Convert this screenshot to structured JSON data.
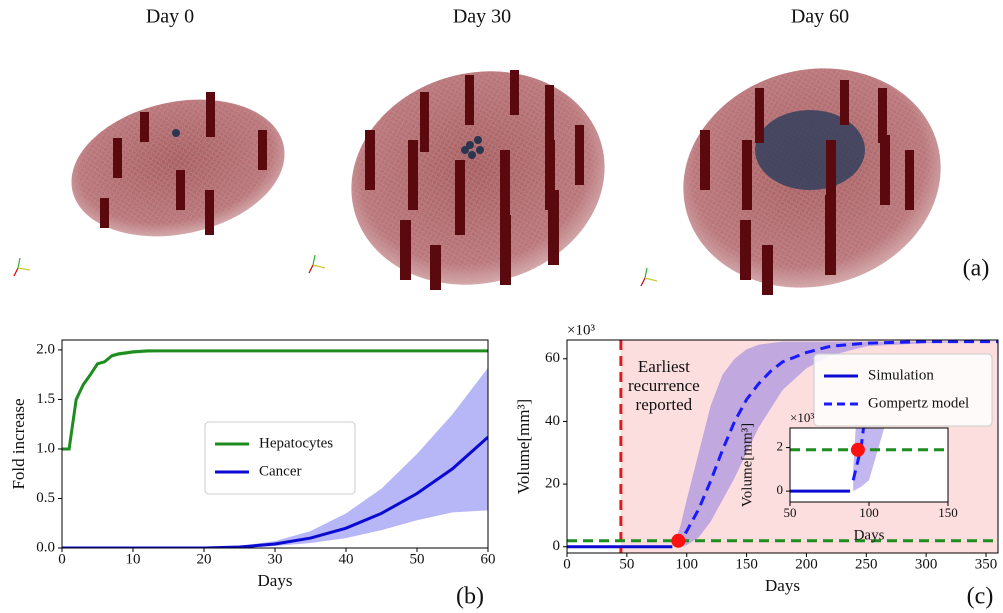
{
  "panels": [
    {
      "title": "Day 0"
    },
    {
      "title": "Day 30"
    },
    {
      "title": "Day 60"
    }
  ],
  "panel_label": "(a)",
  "chart_data": [
    {
      "type": "line",
      "label": "(b)",
      "xlabel": "Days",
      "ylabel": "Fold increase",
      "xlim": [
        0,
        60
      ],
      "xticks": [
        0,
        10,
        20,
        30,
        40,
        50,
        60
      ],
      "ylim": [
        0,
        2.1
      ],
      "yticks": [
        {
          "value": 0,
          "label": "0.0"
        },
        {
          "value": 0.5,
          "label": "0.5"
        },
        {
          "value": 1,
          "label": "1.0"
        },
        {
          "value": 1.5,
          "label": "1.5"
        },
        {
          "value": 2,
          "label": "2.0"
        }
      ],
      "legend": "center",
      "x": [
        0,
        1,
        2,
        3,
        4,
        5,
        6,
        7,
        8,
        10,
        12,
        15,
        20,
        25,
        30,
        35,
        40,
        45,
        50,
        55,
        60
      ],
      "series": [
        {
          "name": "Hepatocytes",
          "color": "#1e8c1e",
          "band_color": "#7ccf7c",
          "values": [
            1,
            1,
            1.5,
            1.65,
            1.75,
            1.86,
            1.88,
            1.94,
            1.96,
            1.98,
            1.99,
            1.99,
            1.99,
            1.99,
            1.99,
            1.99,
            1.99,
            1.99,
            1.99,
            1.99,
            1.99
          ],
          "lower": [
            1,
            1,
            1.49,
            1.64,
            1.74,
            1.85,
            1.87,
            1.92,
            1.94,
            1.96,
            1.97,
            1.98,
            1.98,
            1.98,
            1.98,
            1.98,
            1.98,
            1.98,
            1.98,
            1.98,
            1.98
          ],
          "upper": [
            1,
            1,
            1.51,
            1.66,
            1.76,
            1.87,
            1.89,
            1.96,
            1.98,
            2,
            2,
            2,
            2,
            2,
            2,
            2,
            2,
            2,
            2,
            2,
            2
          ]
        },
        {
          "name": "Cancer",
          "color": "#0a0ad2",
          "band_color": "#7b7bf0",
          "values": [
            0,
            0,
            0,
            0,
            0,
            0,
            0,
            0,
            0,
            0,
            0,
            0,
            0,
            0.01,
            0.04,
            0.1,
            0.2,
            0.35,
            0.55,
            0.8,
            1.12
          ],
          "lower": [
            0,
            0,
            0,
            0,
            0,
            0,
            0,
            0,
            0,
            0,
            0,
            0,
            0,
            0,
            0.02,
            0.05,
            0.1,
            0.18,
            0.28,
            0.36,
            0.38
          ],
          "upper": [
            0,
            0,
            0,
            0,
            0,
            0,
            0,
            0,
            0,
            0,
            0,
            0,
            0,
            0.02,
            0.07,
            0.17,
            0.35,
            0.6,
            0.95,
            1.35,
            1.82
          ]
        }
      ]
    },
    {
      "type": "line",
      "label": "(c)",
      "xlabel": "Days",
      "ylabel": "Volume[mm³]",
      "multiplier": "×10³",
      "xlim": [
        0,
        360
      ],
      "xticks": [
        0,
        50,
        100,
        150,
        200,
        250,
        300,
        350
      ],
      "ylim": [
        -2,
        66
      ],
      "yticks": [
        0,
        20,
        40,
        60
      ],
      "legend": "upper right",
      "shade": {
        "from": 45,
        "color": "#fcdede"
      },
      "vline": {
        "x": 45,
        "color": "#e31a1c"
      },
      "hline": {
        "y": 1.9,
        "color": "#1e8c1e"
      },
      "marker": {
        "x": 93,
        "y": 1.9,
        "color": "#ff1010"
      },
      "annotation": [
        "Earliest",
        "recurrence",
        "reported"
      ],
      "x": [
        0,
        50,
        88,
        90,
        95,
        100,
        110,
        120,
        130,
        140,
        150,
        160,
        170,
        180,
        200,
        220,
        250,
        300,
        360
      ],
      "series": [
        {
          "name": "Simulation",
          "color": "#0a0ad2",
          "values": [
            0,
            0,
            0,
            null,
            null,
            null,
            null,
            null,
            null,
            null,
            null,
            null,
            null,
            null,
            null,
            null,
            null,
            null,
            null
          ]
        },
        {
          "name": "Gompertz model",
          "color": "#1a1aff",
          "dash": true,
          "band_color": "#8f7be0",
          "values": [
            null,
            null,
            null,
            0.5,
            2,
            5,
            12,
            21,
            31,
            40,
            47,
            52,
            56,
            59,
            62,
            64,
            65,
            65.5,
            65.5
          ],
          "lower": [
            null,
            null,
            null,
            0,
            0.2,
            0.5,
            3,
            8,
            15,
            22,
            30,
            38,
            44,
            50,
            57,
            61,
            64,
            65,
            65.5
          ],
          "upper": [
            null,
            null,
            null,
            1,
            7,
            15,
            30,
            45,
            55,
            60,
            63,
            64.5,
            65,
            65.5,
            65.5,
            65.5,
            65.5,
            65.5,
            65.5
          ]
        }
      ],
      "inset": {
        "xlabel": "Days",
        "ylabel": "Volume[mm³]",
        "multiplier": "×10³",
        "xlim": [
          50,
          150
        ],
        "xticks": [
          50,
          100,
          150
        ],
        "ylim": [
          -0.5,
          2.9
        ],
        "yticks": [
          0,
          2
        ]
      }
    }
  ]
}
